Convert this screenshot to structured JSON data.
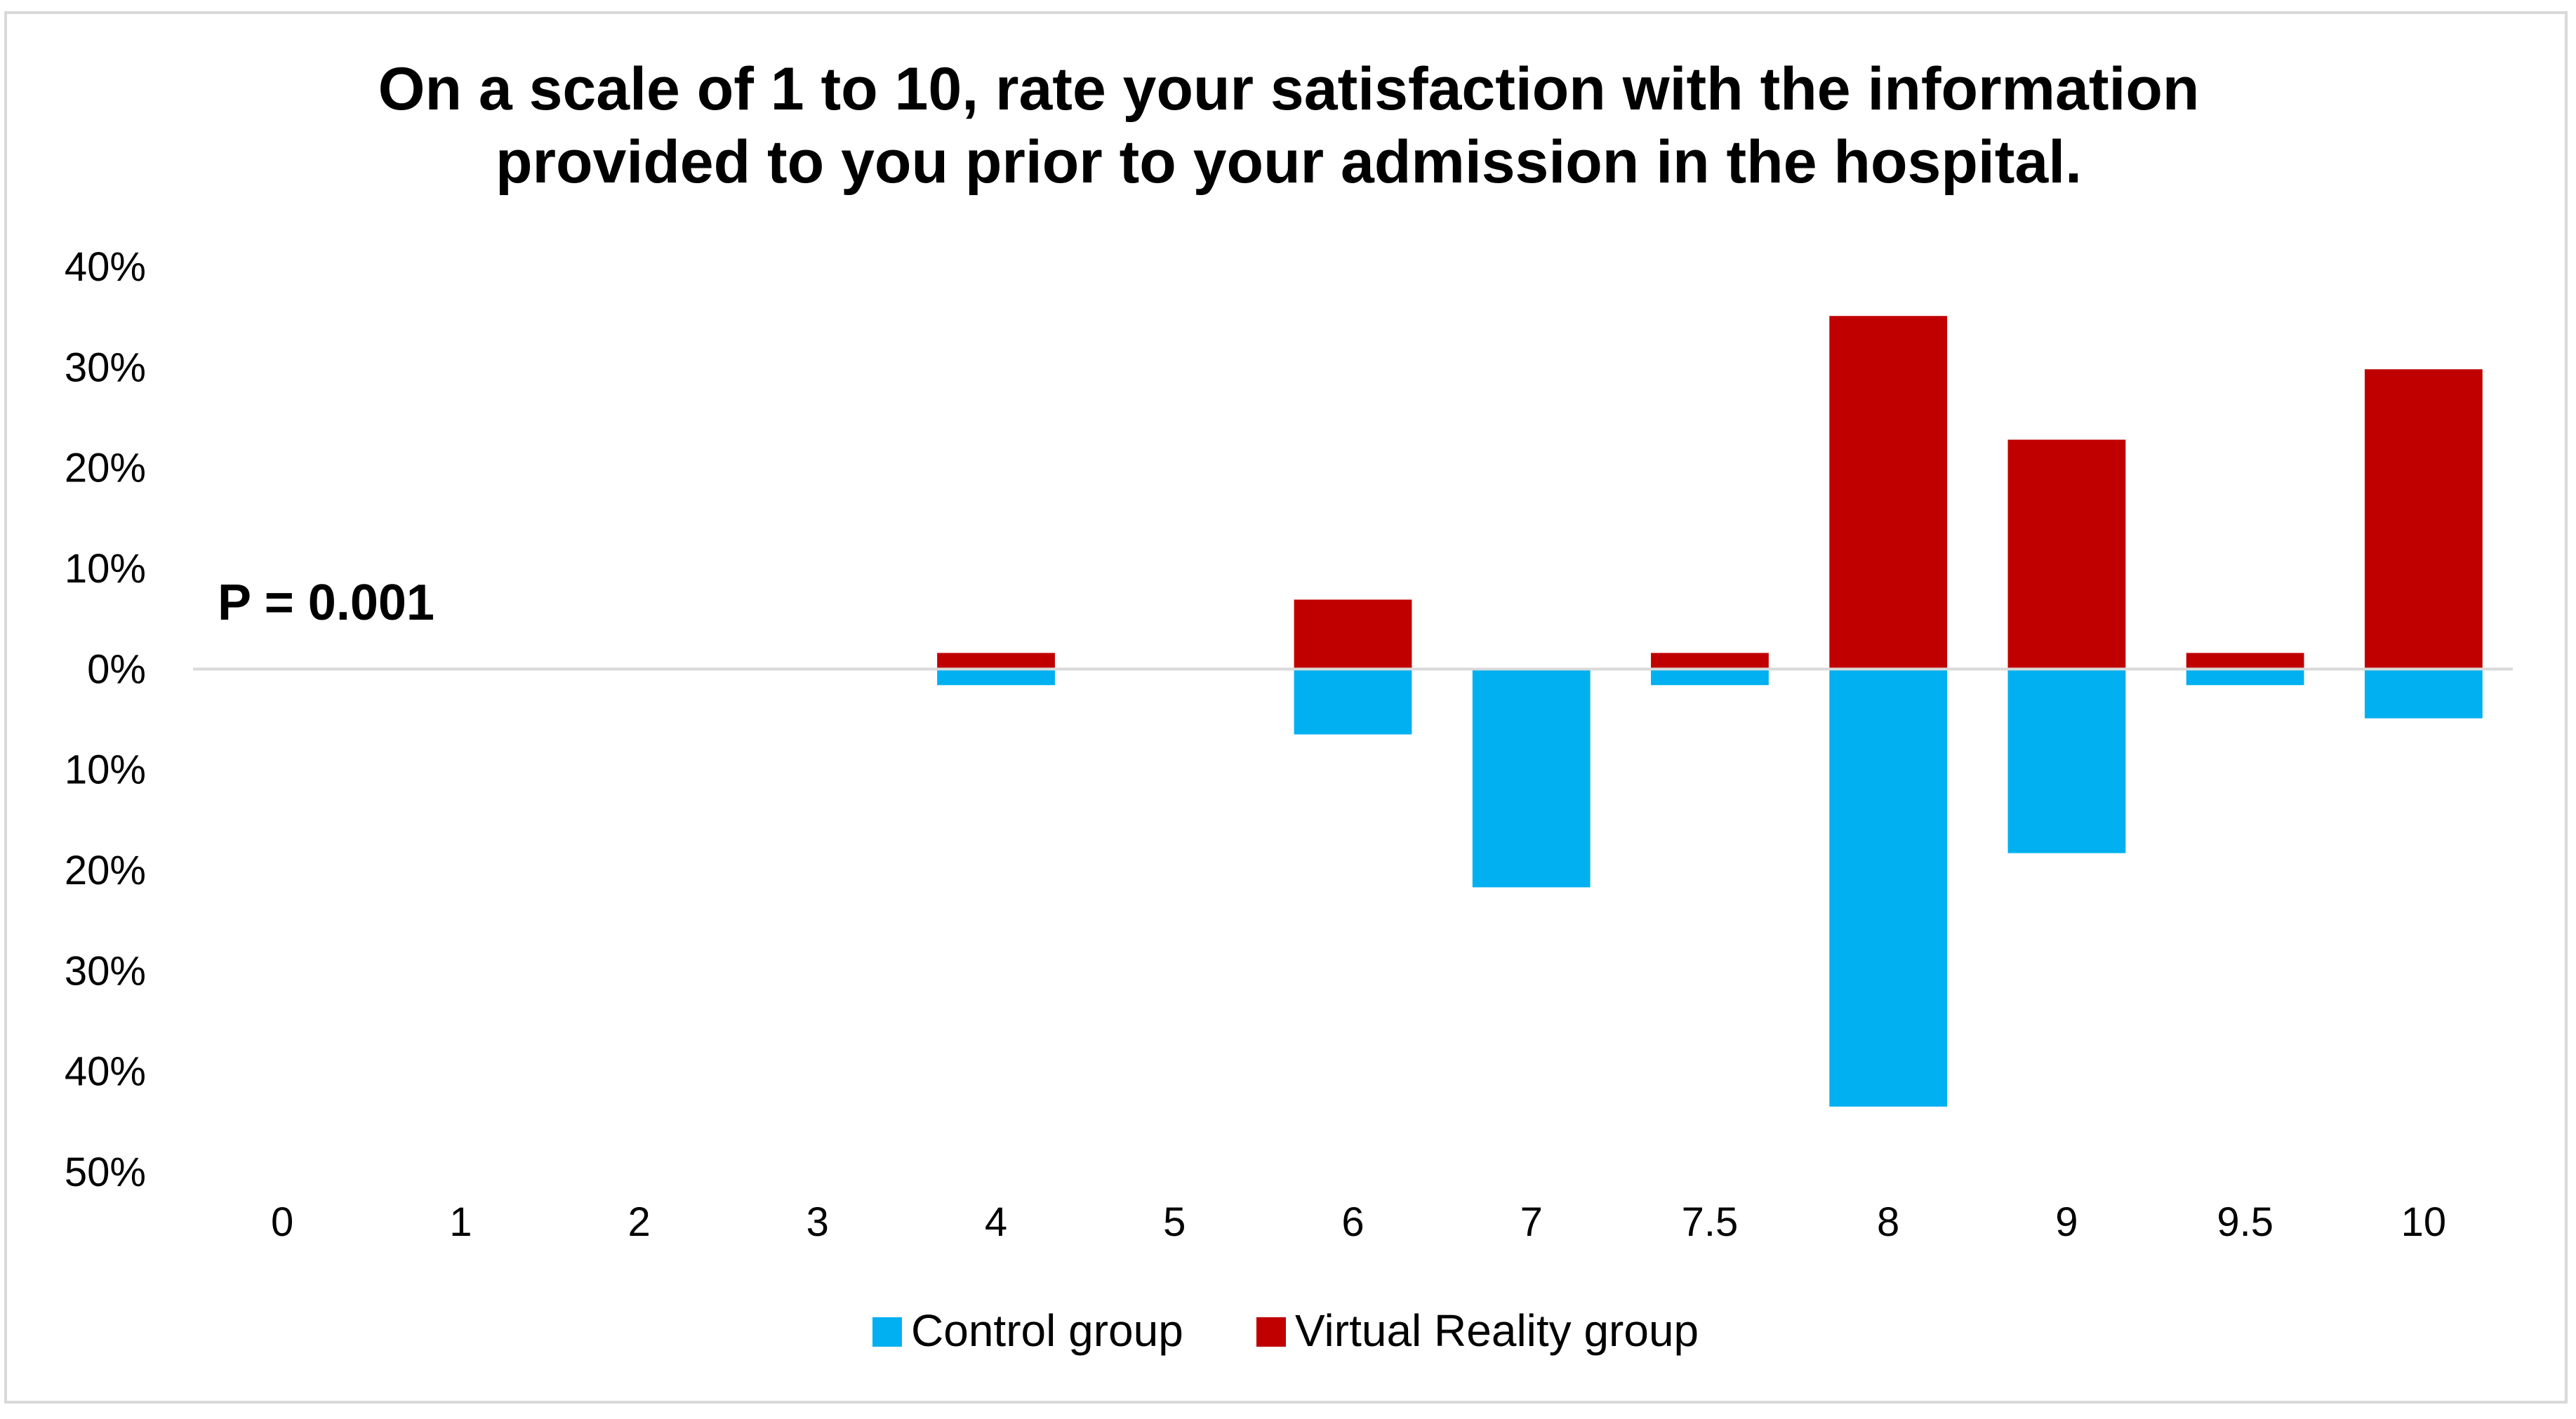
{
  "chart_data": {
    "type": "bar",
    "title": "On a scale of 1 to 10, rate your satisfaction with the information provided to you prior to your admission in the hospital.",
    "title_lines": [
      "On a scale of 1 to 10, rate your satisfaction with the information",
      "provided to you prior to your admission in the hospital."
    ],
    "xlabel": "",
    "ylabel": "",
    "layout": "diverging",
    "categories": [
      "0",
      "1",
      "2",
      "3",
      "4",
      "5",
      "6",
      "7",
      "7.5",
      "8",
      "9",
      "9.5",
      "10"
    ],
    "series": [
      {
        "name": "Control group",
        "color": "#00b0f0",
        "direction": "down",
        "values": [
          0,
          0,
          0,
          0,
          1.6,
          0,
          6.5,
          21.7,
          1.6,
          43.5,
          18.3,
          1.6,
          4.9
        ]
      },
      {
        "name": "Virtual Reality group",
        "color": "#c00000",
        "direction": "up",
        "values": [
          0,
          0,
          0,
          0,
          1.6,
          0,
          6.9,
          0,
          1.6,
          35.1,
          22.8,
          1.6,
          29.8
        ]
      }
    ],
    "ylim": [
      -50,
      40
    ],
    "yticks": [
      40,
      30,
      20,
      10,
      0,
      -10,
      -20,
      -30,
      -40,
      -50
    ],
    "ytick_labels": [
      "40%",
      "30%",
      "20%",
      "10%",
      "0%",
      "10%",
      "20%",
      "30%",
      "40%",
      "50%"
    ],
    "grid": false,
    "annotation": "P = 0.001",
    "legend_position": "bottom-center"
  }
}
